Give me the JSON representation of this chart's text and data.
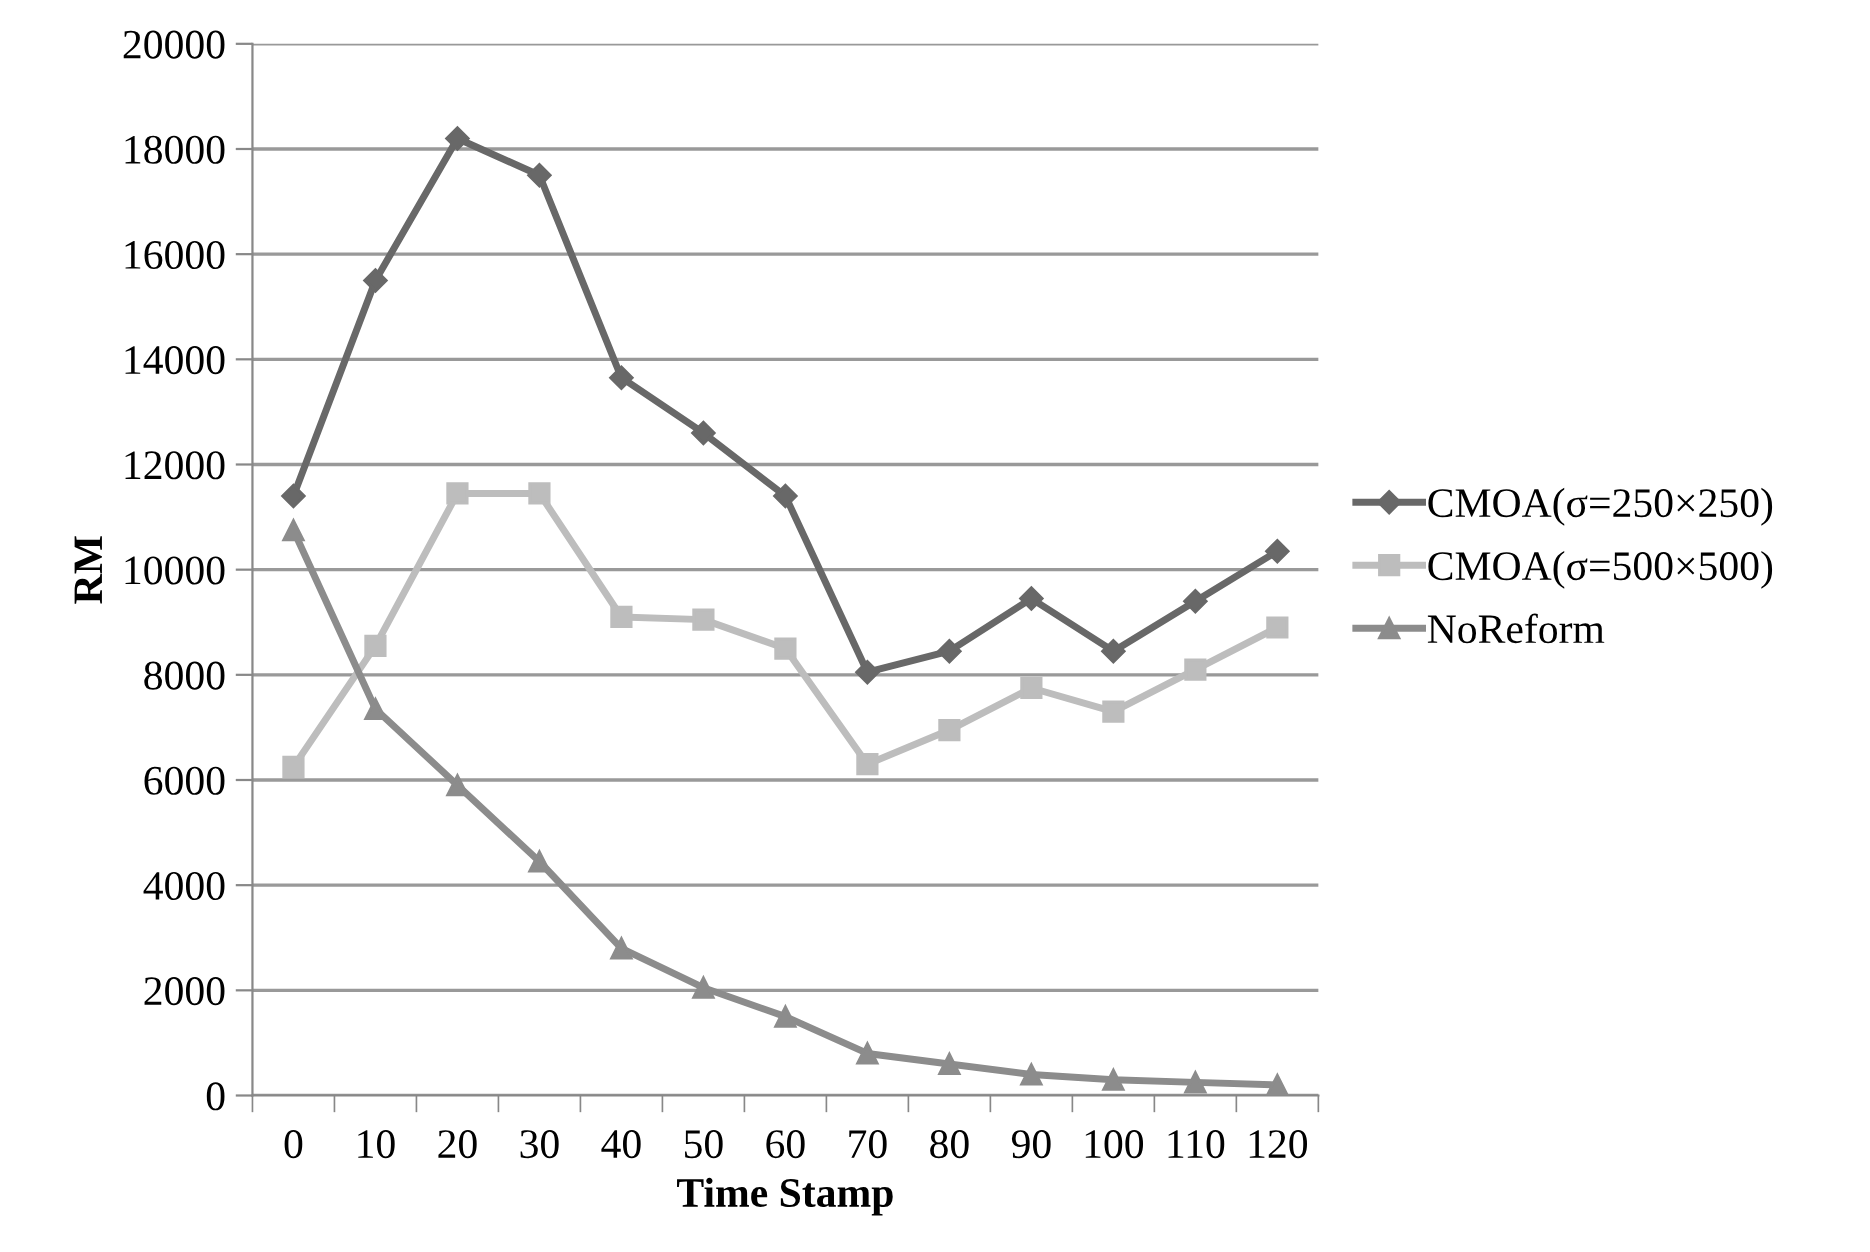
{
  "chart_data": {
    "type": "line",
    "xlabel": "Time Stamp",
    "ylabel": "RM",
    "categories": [
      "0",
      "10",
      "20",
      "30",
      "40",
      "50",
      "60",
      "70",
      "80",
      "90",
      "100",
      "110",
      "120"
    ],
    "series": [
      {
        "name": "CMOA(σ=250×250)",
        "color": "#686868",
        "marker": "diamond",
        "values": [
          11400,
          15500,
          18200,
          17500,
          13650,
          12600,
          11400,
          8050,
          8450,
          9450,
          8450,
          9400,
          10350
        ]
      },
      {
        "name": "CMOA(σ=500×500)",
        "color": "#bdbdbd",
        "marker": "square",
        "values": [
          6250,
          8550,
          11450,
          11450,
          9100,
          9050,
          8500,
          6300,
          6950,
          7750,
          7300,
          8100,
          8900
        ]
      },
      {
        "name": "NoReform",
        "color": "#8c8c8c",
        "marker": "triangle",
        "values": [
          10750,
          7350,
          5900,
          4450,
          2800,
          2050,
          1500,
          800,
          600,
          400,
          300,
          250,
          200
        ]
      }
    ],
    "ylim": [
      0,
      20000
    ],
    "yticks": [
      0,
      2000,
      4000,
      6000,
      8000,
      10000,
      12000,
      14000,
      16000,
      18000,
      20000
    ],
    "grid": "y",
    "legend": "right",
    "line_style": "solid"
  }
}
